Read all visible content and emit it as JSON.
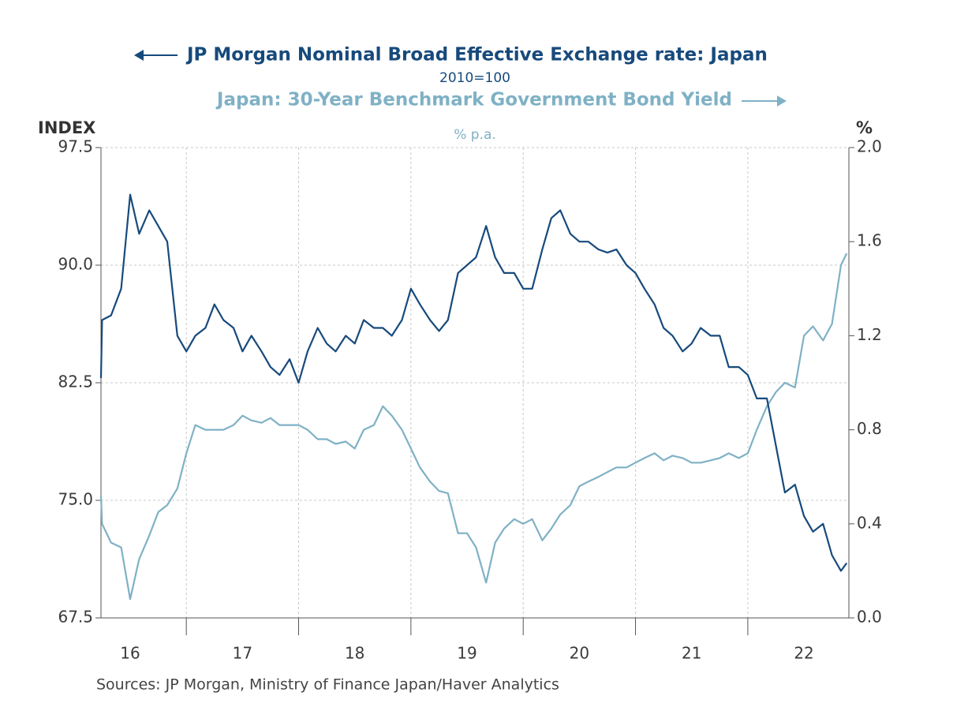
{
  "chart_data": {
    "type": "line",
    "subtitle": "2010=100",
    "ylabel": "INDEX",
    "y2label": "%",
    "y2_subtitle": "% p.a.",
    "source": "Sources:  JP Morgan, Ministry of Finance Japan/Haver Analytics",
    "grid": true,
    "xlim": [
      16.24,
      22.9
    ],
    "xticks": [
      {
        "value": 16.5,
        "label": "16"
      },
      {
        "value": 17.5,
        "label": "17"
      },
      {
        "value": 18.5,
        "label": "18"
      },
      {
        "value": 19.5,
        "label": "19"
      },
      {
        "value": 20.5,
        "label": "20"
      },
      {
        "value": 21.5,
        "label": "21"
      },
      {
        "value": 22.5,
        "label": "22"
      }
    ],
    "ylim": [
      67.5,
      97.5
    ],
    "yticks": [
      67.5,
      {
        "value": 75,
        "label": "75.0"
      },
      82.5,
      {
        "value": 90,
        "label": "90.0"
      },
      97.5
    ],
    "y2lim": [
      0,
      2
    ],
    "y2ticks": [
      {
        "value": 0,
        "label": "0.0"
      },
      0.4,
      0.8,
      1.2,
      1.6,
      {
        "value": 2,
        "label": "2.0"
      }
    ],
    "x": [
      16.24,
      16.25,
      16.33,
      16.42,
      16.5,
      16.58,
      16.67,
      16.75,
      16.83,
      16.92,
      17.0,
      17.08,
      17.17,
      17.25,
      17.33,
      17.42,
      17.5,
      17.58,
      17.67,
      17.75,
      17.83,
      17.92,
      18.0,
      18.08,
      18.17,
      18.25,
      18.33,
      18.42,
      18.5,
      18.58,
      18.67,
      18.75,
      18.83,
      18.92,
      19.0,
      19.08,
      19.17,
      19.25,
      19.33,
      19.42,
      19.5,
      19.58,
      19.67,
      19.75,
      19.83,
      19.92,
      20.0,
      20.08,
      20.17,
      20.25,
      20.33,
      20.42,
      20.5,
      20.58,
      20.67,
      20.75,
      20.83,
      20.92,
      21.0,
      21.08,
      21.17,
      21.25,
      21.33,
      21.42,
      21.5,
      21.58,
      21.67,
      21.75,
      21.83,
      21.92,
      22.0,
      22.08,
      22.17,
      22.25,
      22.33,
      22.42,
      22.5,
      22.58,
      22.67,
      22.75,
      22.83,
      22.88
    ],
    "series": [
      {
        "name": "JP Morgan Nominal Broad Effective Exchange rate: Japan",
        "color": "#174a7c",
        "axis": "y",
        "values": [
          82.8,
          86.5,
          86.8,
          88.5,
          94.5,
          92.0,
          93.5,
          92.5,
          91.5,
          85.5,
          84.5,
          85.5,
          86.0,
          87.5,
          86.5,
          86.0,
          84.5,
          85.5,
          84.5,
          83.5,
          83.0,
          84.0,
          82.5,
          84.5,
          86.0,
          85.0,
          84.5,
          85.5,
          85.0,
          86.5,
          86.0,
          86.0,
          85.5,
          86.5,
          88.5,
          87.5,
          86.5,
          85.8,
          86.5,
          89.5,
          90.0,
          90.5,
          92.5,
          90.5,
          89.5,
          89.5,
          88.5,
          88.5,
          91.0,
          93.0,
          93.5,
          92.0,
          91.5,
          91.5,
          91.0,
          90.8,
          91.0,
          90.0,
          89.5,
          88.5,
          87.5,
          86.0,
          85.5,
          84.5,
          85.0,
          86.0,
          85.5,
          85.5,
          83.5,
          83.5,
          83.0,
          81.5,
          81.5,
          78.5,
          75.5,
          76.0,
          74.0,
          73.0,
          73.5,
          71.5,
          70.5,
          71.0
        ]
      },
      {
        "name": "Japan: 30-Year Benchmark Government Bond Yield",
        "color": "#7fb1c5",
        "axis": "y2",
        "values": [
          0.52,
          0.4,
          0.32,
          0.3,
          0.08,
          0.25,
          0.35,
          0.45,
          0.48,
          0.55,
          0.7,
          0.82,
          0.8,
          0.8,
          0.8,
          0.82,
          0.86,
          0.84,
          0.83,
          0.85,
          0.82,
          0.82,
          0.82,
          0.8,
          0.76,
          0.76,
          0.74,
          0.75,
          0.72,
          0.8,
          0.82,
          0.9,
          0.86,
          0.8,
          0.72,
          0.64,
          0.58,
          0.54,
          0.53,
          0.36,
          0.36,
          0.3,
          0.15,
          0.32,
          0.38,
          0.42,
          0.4,
          0.42,
          0.33,
          0.38,
          0.44,
          0.48,
          0.56,
          0.58,
          0.6,
          0.62,
          0.64,
          0.64,
          0.66,
          0.68,
          0.7,
          0.67,
          0.69,
          0.68,
          0.66,
          0.66,
          0.67,
          0.68,
          0.7,
          0.68,
          0.7,
          0.8,
          0.9,
          0.96,
          1.0,
          0.98,
          1.2,
          1.24,
          1.18,
          1.25,
          1.5,
          1.55
        ]
      }
    ]
  }
}
